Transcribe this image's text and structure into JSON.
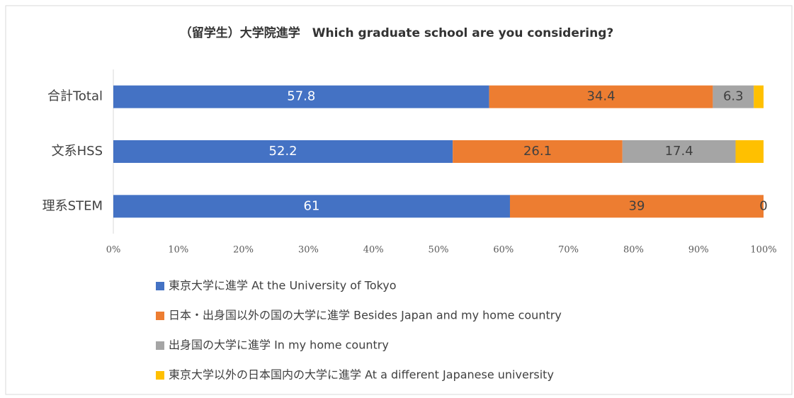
{
  "chart_data": {
    "type": "stacked_barh",
    "title": "（留学生）大学院進学　Which graduate school are you considering?",
    "categories": [
      "合計Total",
      "文系HSS",
      "理系STEM"
    ],
    "series": [
      {
        "name": "東京大学に進学 At the University of Tokyo",
        "color": "#4472c4",
        "label_color": "#ffffff",
        "show_labels": true,
        "values": [
          57.8,
          52.2,
          61
        ]
      },
      {
        "name": "日本・出身国以外の国の大学に進学 Besides Japan and my home country",
        "color": "#ed7d31",
        "label_color": "#404040",
        "show_labels": true,
        "values": [
          34.4,
          26.1,
          39
        ]
      },
      {
        "name": "出身国の大学に進学 In my home country",
        "color": "#a5a5a5",
        "label_color": "#404040",
        "show_labels": true,
        "values": [
          6.3,
          17.4,
          0
        ]
      },
      {
        "name": "東京大学以外の日本国内の大学に進学 At a different Japanese university",
        "color": "#ffc000",
        "label_color": "#404040",
        "show_labels": false,
        "values": [
          1.5,
          4.3,
          0
        ]
      }
    ],
    "xlim": [
      0,
      100
    ],
    "xticks": [
      {
        "value": 0,
        "label": "0%"
      },
      {
        "value": 10,
        "label": "10%"
      },
      {
        "value": 20,
        "label": "20%"
      },
      {
        "value": 30,
        "label": "30%"
      },
      {
        "value": 40,
        "label": "40%"
      },
      {
        "value": 50,
        "label": "50%"
      },
      {
        "value": 60,
        "label": "60%"
      },
      {
        "value": 70,
        "label": "70%"
      },
      {
        "value": 80,
        "label": "80%"
      },
      {
        "value": 90,
        "label": "90%"
      },
      {
        "value": 100,
        "label": "100%"
      }
    ],
    "legend": "bottom"
  }
}
